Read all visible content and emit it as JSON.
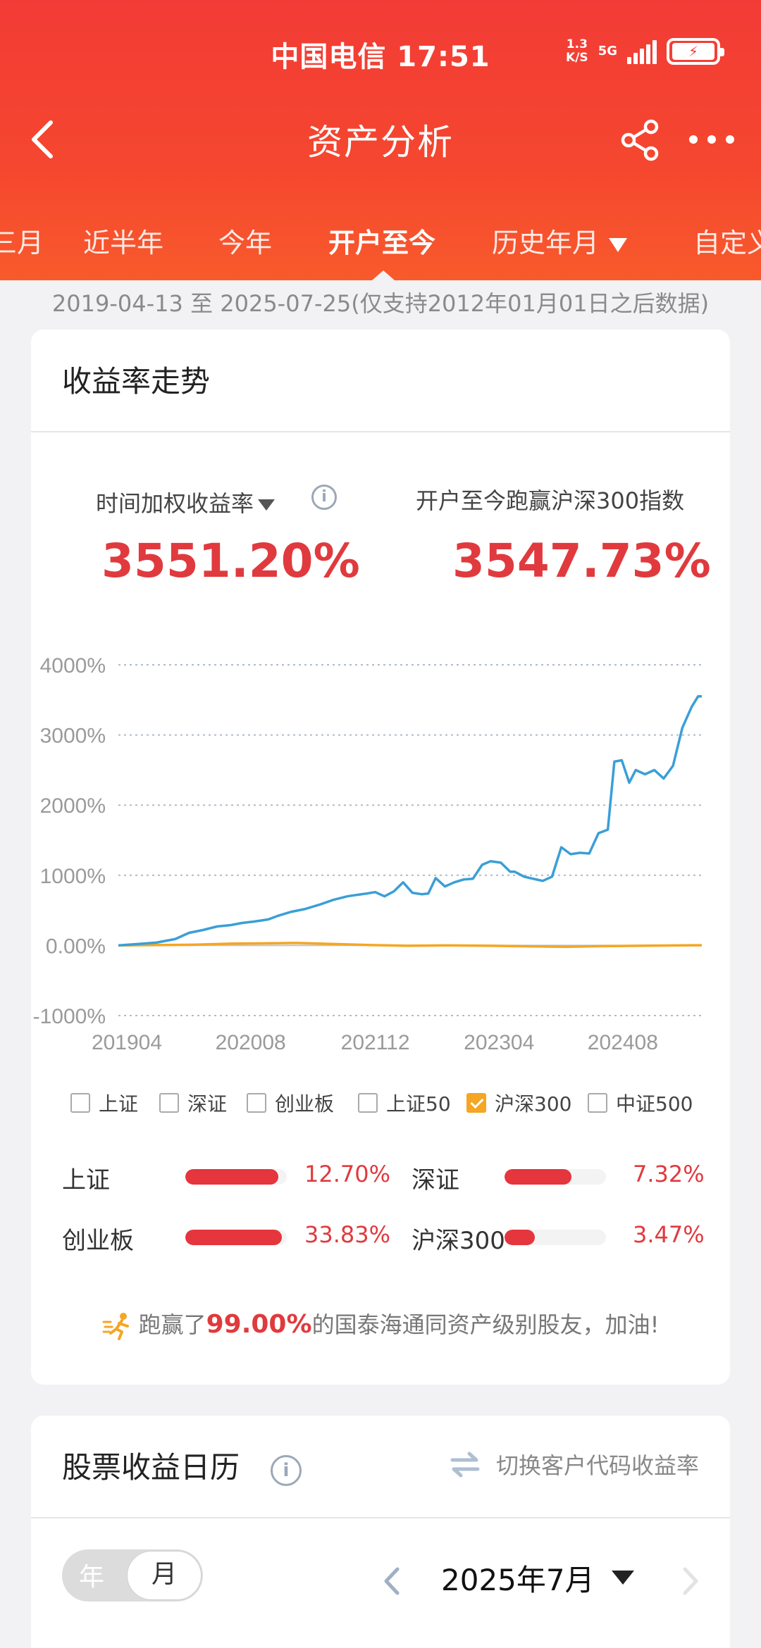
{
  "status": {
    "carrier_time": "中国电信 17:51",
    "speed_top": "1.3",
    "speed_bottom": "K/S",
    "network": "5G",
    "battery_level": 1.0
  },
  "nav": {
    "title": "资产分析"
  },
  "tabs": [
    {
      "label": "三月",
      "active": false
    },
    {
      "label": "近半年",
      "active": false
    },
    {
      "label": "今年",
      "active": false
    },
    {
      "label": "开户至今",
      "active": true
    },
    {
      "label": "历史年月",
      "active": false
    },
    {
      "label": "自定义",
      "active": false
    }
  ],
  "date_range": "2019-04-13 至 2025-07-25(仅支持2012年01月01日之后数据)",
  "performance": {
    "title": "收益率走势",
    "left_label": "时间加权收益率",
    "left_value": "3551.20%",
    "right_label": "开户至今跑赢沪深300指数",
    "right_value": "3547.73%",
    "legend": [
      {
        "label": "上证",
        "checked": false
      },
      {
        "label": "深证",
        "checked": false
      },
      {
        "label": "创业板",
        "checked": false
      },
      {
        "label": "上证50",
        "checked": false
      },
      {
        "label": "沪深300",
        "checked": true
      },
      {
        "label": "中证500",
        "checked": false
      }
    ],
    "comparisons": [
      {
        "label": "上证",
        "value": "12.70%",
        "fill": 0.92
      },
      {
        "label": "深证",
        "value": "7.32%",
        "fill": 0.66
      },
      {
        "label": "创业板",
        "value": "33.83%",
        "fill": 0.95
      },
      {
        "label": "沪深300",
        "value": "3.47%",
        "fill": 0.3
      }
    ],
    "beat_prefix": "跑赢了",
    "beat_pct": "99.00%",
    "beat_suffix": "的国泰海通同资产级别股友，加油!"
  },
  "calendar": {
    "title": "股票收益日历",
    "switch_label": "切换客户代码收益率",
    "seg_year": "年",
    "seg_month": "月",
    "month": "2025年7月"
  },
  "colors": {
    "header_red": "#f23b36",
    "value_red": "#e03a3e",
    "portfolio_line": "#3a9fd6",
    "index_line": "#f5a623"
  },
  "chart_data": {
    "type": "line",
    "ylim": [
      -1000,
      4000
    ],
    "yticks": [
      "4000%",
      "3000%",
      "2000%",
      "1000%",
      "0.00%",
      "-1000%"
    ],
    "ytick_values": [
      4000,
      3000,
      2000,
      1000,
      0,
      -1000
    ],
    "xticks": [
      "201904",
      "202008",
      "202112",
      "202304",
      "202408"
    ],
    "xtick_values": [
      2019.29,
      2020.62,
      2021.96,
      2023.29,
      2024.62
    ],
    "xlim": [
      2019.29,
      2025.56
    ],
    "series": [
      {
        "name": "时间加权收益率",
        "color": "#3a9fd6",
        "x": [
          2019.29,
          2019.5,
          2019.7,
          2019.9,
          2020.05,
          2020.2,
          2020.35,
          2020.5,
          2020.62,
          2020.75,
          2020.9,
          2021.0,
          2021.15,
          2021.3,
          2021.45,
          2021.6,
          2021.75,
          2021.85,
          2021.96,
          2022.05,
          2022.15,
          2022.25,
          2022.35,
          2022.45,
          2022.55,
          2022.62,
          2022.7,
          2022.8,
          2022.9,
          2023.0,
          2023.1,
          2023.2,
          2023.29,
          2023.4,
          2023.5,
          2023.55,
          2023.65,
          2023.75,
          2023.85,
          2023.95,
          2024.05,
          2024.15,
          2024.25,
          2024.35,
          2024.45,
          2024.55,
          2024.62,
          2024.7,
          2024.78,
          2024.85,
          2024.95,
          2025.05,
          2025.15,
          2025.25,
          2025.35,
          2025.45,
          2025.52,
          2025.56
        ],
        "y": [
          0,
          20,
          40,
          90,
          180,
          220,
          270,
          290,
          320,
          340,
          370,
          420,
          480,
          520,
          580,
          650,
          700,
          720,
          740,
          760,
          700,
          770,
          900,
          750,
          730,
          740,
          960,
          840,
          900,
          940,
          950,
          1150,
          1200,
          1180,
          1050,
          1050,
          980,
          950,
          920,
          980,
          1400,
          1300,
          1320,
          1310,
          1600,
          1650,
          2620,
          2640,
          2320,
          2500,
          2440,
          2500,
          2380,
          2560,
          3100,
          3400,
          3550,
          3551
        ]
      },
      {
        "name": "沪深300",
        "color": "#f5a623",
        "x": [
          2019.29,
          2019.7,
          2020.1,
          2020.5,
          2020.9,
          2021.2,
          2021.6,
          2022.0,
          2022.4,
          2022.8,
          2023.29,
          2023.8,
          2024.1,
          2024.5,
          2024.9,
          2025.3,
          2025.56
        ],
        "y": [
          0,
          5,
          10,
          25,
          30,
          35,
          20,
          5,
          -5,
          0,
          -5,
          -15,
          -20,
          -10,
          -5,
          0,
          3
        ]
      }
    ]
  }
}
